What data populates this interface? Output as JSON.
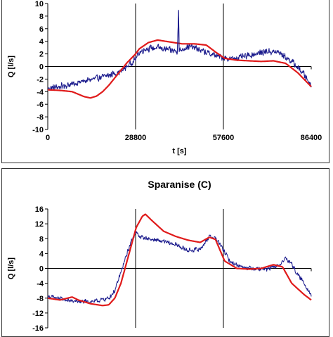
{
  "chart_data": [
    {
      "type": "line",
      "title": "",
      "xlabel": "t [s]",
      "ylabel": "Q [l/s]",
      "xlim": [
        0,
        86400
      ],
      "ylim": [
        -10,
        10
      ],
      "xticks": [
        0,
        28800,
        57600,
        86400
      ],
      "xtick_labels": [
        "0",
        "28800",
        "57600",
        "86400"
      ],
      "yticks": [
        -10,
        -8,
        -6,
        -4,
        -2,
        0,
        2,
        4,
        6,
        8,
        10
      ],
      "ytick_labels": [
        "-10",
        "-8",
        "-6",
        "-4",
        "-2",
        "0",
        "2",
        "4",
        "6",
        "8",
        "10"
      ],
      "vertical_lines": [
        28800,
        57600
      ],
      "grid": false,
      "legend": "none",
      "series": [
        {
          "color": "#1a1a8c",
          "noise": 0.6,
          "x": [
            0,
            4000,
            8000,
            12000,
            16000,
            20000,
            24000,
            26000,
            28800,
            30000,
            32000,
            36000,
            40000,
            42500,
            42900,
            43100,
            43500,
            46000,
            48000,
            52000,
            56000,
            60000,
            64000,
            68000,
            72000,
            76000,
            80000,
            84000,
            86400
          ],
          "y": [
            -3.5,
            -3.2,
            -2.8,
            -2.3,
            -1.9,
            -1.4,
            -0.8,
            0.0,
            1.2,
            2.2,
            2.8,
            3.0,
            2.6,
            2.4,
            9.0,
            2.4,
            2.6,
            3.2,
            3.0,
            2.2,
            1.6,
            1.2,
            1.5,
            2.0,
            2.4,
            2.2,
            0.8,
            -1.2,
            -3.0
          ]
        },
        {
          "color": "#e01b1b",
          "noise": 0,
          "x": [
            0,
            4000,
            8000,
            12000,
            14000,
            16000,
            18000,
            20000,
            22000,
            24000,
            26000,
            28800,
            30000,
            33000,
            36000,
            40000,
            44000,
            48000,
            52000,
            55000,
            58000,
            62000,
            66000,
            70000,
            74000,
            78000,
            82000,
            86400
          ],
          "y": [
            -3.7,
            -3.8,
            -4.0,
            -4.8,
            -5.0,
            -4.7,
            -4.0,
            -3.0,
            -1.8,
            -0.6,
            0.6,
            2.0,
            2.8,
            3.8,
            4.2,
            3.9,
            3.6,
            3.6,
            3.4,
            2.3,
            1.3,
            1.0,
            0.9,
            0.8,
            0.9,
            0.5,
            -1.0,
            -3.2
          ]
        }
      ]
    },
    {
      "type": "line",
      "title": "Sparanise (C)",
      "xlabel": "",
      "ylabel": "Q [l/s]",
      "xlim": [
        0,
        86400
      ],
      "ylim": [
        -16,
        16
      ],
      "xticks": [
        0,
        28800,
        57600,
        86400
      ],
      "yticks": [
        -16,
        -12,
        -8,
        -4,
        0,
        4,
        8,
        12,
        16
      ],
      "ytick_labels": [
        "-16",
        "-12",
        "-8",
        "-4",
        "0",
        "4",
        "8",
        "12",
        "16"
      ],
      "vertical_lines": [
        28800,
        57600
      ],
      "grid": false,
      "legend": "none",
      "series": [
        {
          "color": "#1a1a8c",
          "noise": 0.7,
          "x": [
            0,
            4000,
            8000,
            12000,
            16000,
            20000,
            22000,
            24000,
            26000,
            27500,
            28800,
            30000,
            34000,
            38000,
            42000,
            46000,
            50000,
            53000,
            55000,
            57000,
            60000,
            64000,
            68000,
            72000,
            76000,
            78000,
            80000,
            82000,
            84000,
            86400
          ],
          "y": [
            -7.5,
            -8.2,
            -8.8,
            -9.0,
            -8.8,
            -8.0,
            -6.0,
            -1.0,
            4.0,
            7.5,
            9.8,
            8.6,
            7.8,
            7.2,
            6.4,
            4.8,
            5.2,
            8.6,
            8.2,
            5.8,
            1.6,
            0.4,
            0.0,
            -0.2,
            0.8,
            2.8,
            1.2,
            -1.8,
            -3.8,
            -7.2
          ]
        },
        {
          "color": "#e01b1b",
          "noise": 0,
          "x": [
            0,
            4000,
            8000,
            10000,
            14000,
            18000,
            20000,
            22000,
            24000,
            26000,
            28000,
            29000,
            30000,
            31000,
            32000,
            34000,
            38000,
            42000,
            46000,
            50000,
            53000,
            55000,
            58000,
            62000,
            66000,
            70000,
            74000,
            77000,
            80000,
            84000,
            86400
          ],
          "y": [
            -8.0,
            -8.5,
            -7.7,
            -8.5,
            -9.5,
            -10.0,
            -9.8,
            -8.0,
            -4.0,
            2.0,
            8.0,
            11.0,
            12.5,
            14.0,
            14.6,
            13.0,
            10.0,
            8.6,
            7.6,
            7.0,
            8.4,
            7.8,
            2.0,
            0.0,
            -0.2,
            0.0,
            1.0,
            0.4,
            -4.0,
            -7.0,
            -8.5
          ]
        }
      ]
    }
  ]
}
